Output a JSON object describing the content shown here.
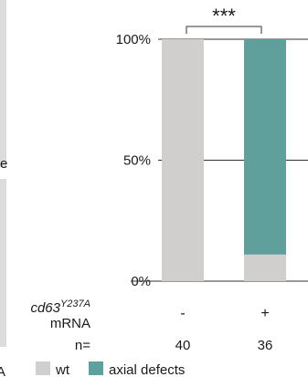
{
  "chart_data": {
    "type": "bar",
    "stacked": true,
    "percent": true,
    "row_label_main": "cd63",
    "row_label_sup": "Y237A",
    "row_label_line2": "mRNA",
    "n_label": "n=",
    "categories": [
      "-",
      "+"
    ],
    "n_values": [
      "40",
      "36"
    ],
    "series": [
      {
        "name": "wt",
        "color": "#d0cfce",
        "values": [
          100,
          11
        ]
      },
      {
        "name": "axial defects",
        "color": "#5f9f9c",
        "values": [
          0,
          89
        ]
      }
    ],
    "yticks": [
      "100%",
      "50%",
      "0%"
    ],
    "ylim": [
      0,
      100
    ],
    "significance": "***",
    "legend_position": "bottom-left"
  },
  "fragments": {
    "left_letter_1": "e",
    "left_letter_2": "A"
  }
}
